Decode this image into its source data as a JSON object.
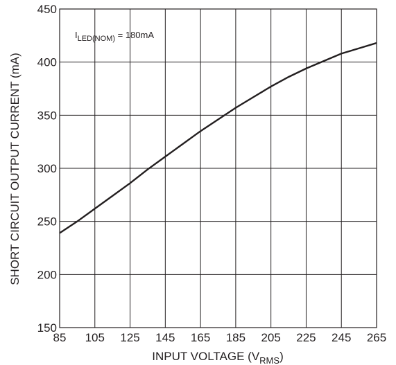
{
  "chart_data": {
    "type": "line",
    "title": "",
    "xlabel_main": "INPUT VOLTAGE (V",
    "xlabel_sub": "RMS",
    "xlabel_tail": ")",
    "ylabel": "SHORT CIRCUIT OUTPUT CURRENT (mA)",
    "xlim": [
      85,
      265
    ],
    "ylim": [
      150,
      450
    ],
    "xticks": [
      "85",
      "105",
      "125",
      "145",
      "165",
      "185",
      "205",
      "225",
      "245",
      "265"
    ],
    "yticks": [
      "150",
      "200",
      "250",
      "300",
      "350",
      "400",
      "450"
    ],
    "grid": true,
    "annotation": {
      "prefix": "I",
      "sub": "LED(NOM)",
      "rest": " = 180mA"
    },
    "series": [
      {
        "x": [
          85,
          95,
          105,
          115,
          125,
          135,
          145,
          155,
          165,
          175,
          185,
          195,
          205,
          215,
          225,
          235,
          245,
          255,
          265
        ],
        "values": [
          239,
          250,
          262,
          274,
          286,
          299,
          311,
          323,
          335,
          346,
          357,
          367,
          377,
          386,
          394,
          401,
          408,
          413,
          418
        ]
      }
    ],
    "colors": {
      "line": "#231f20",
      "grid": "#231f20"
    }
  }
}
